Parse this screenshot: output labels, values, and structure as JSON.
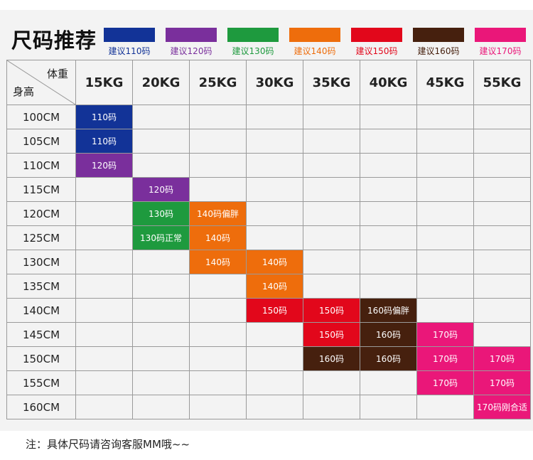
{
  "title": "尺码推荐",
  "legend": [
    {
      "label": "建议110码",
      "color": "#123397"
    },
    {
      "label": "建议120码",
      "color": "#7a2f9c"
    },
    {
      "label": "建议130码",
      "color": "#1e9a3e"
    },
    {
      "label": "建议140码",
      "color": "#ee6d0c"
    },
    {
      "label": "建议150码",
      "color": "#e2071b"
    },
    {
      "label": "建议160码",
      "color": "#46200e"
    },
    {
      "label": "建议170码",
      "color": "#ea1779"
    }
  ],
  "corner": {
    "weight": "体重",
    "height": "身高"
  },
  "weights": [
    "15KG",
    "20KG",
    "25KG",
    "30KG",
    "35KG",
    "40KG",
    "45KG",
    "55KG"
  ],
  "rows": [
    {
      "height": "100CM",
      "cells": [
        {
          "t": "110码",
          "c": 0
        },
        null,
        null,
        null,
        null,
        null,
        null,
        null
      ]
    },
    {
      "height": "105CM",
      "cells": [
        {
          "t": "110码",
          "c": 0
        },
        null,
        null,
        null,
        null,
        null,
        null,
        null
      ]
    },
    {
      "height": "110CM",
      "cells": [
        {
          "t": "120码",
          "c": 1
        },
        null,
        null,
        null,
        null,
        null,
        null,
        null
      ]
    },
    {
      "height": "115CM",
      "cells": [
        null,
        {
          "t": "120码",
          "c": 1
        },
        null,
        null,
        null,
        null,
        null,
        null
      ]
    },
    {
      "height": "120CM",
      "cells": [
        null,
        {
          "t": "130码",
          "c": 2
        },
        {
          "t": "140码偏胖",
          "c": 3
        },
        null,
        null,
        null,
        null,
        null
      ]
    },
    {
      "height": "125CM",
      "cells": [
        null,
        {
          "t": "130码正常",
          "c": 2
        },
        {
          "t": "140码",
          "c": 3
        },
        null,
        null,
        null,
        null,
        null
      ]
    },
    {
      "height": "130CM",
      "cells": [
        null,
        null,
        {
          "t": "140码",
          "c": 3
        },
        {
          "t": "140码",
          "c": 3
        },
        null,
        null,
        null,
        null
      ]
    },
    {
      "height": "135CM",
      "cells": [
        null,
        null,
        null,
        {
          "t": "140码",
          "c": 3
        },
        null,
        null,
        null,
        null
      ]
    },
    {
      "height": "140CM",
      "cells": [
        null,
        null,
        null,
        {
          "t": "150码",
          "c": 4
        },
        {
          "t": "150码",
          "c": 4
        },
        {
          "t": "160码偏胖",
          "c": 5
        },
        null,
        null
      ]
    },
    {
      "height": "145CM",
      "cells": [
        null,
        null,
        null,
        null,
        {
          "t": "150码",
          "c": 4
        },
        {
          "t": "160码",
          "c": 5
        },
        {
          "t": "170码",
          "c": 6
        },
        null
      ]
    },
    {
      "height": "150CM",
      "cells": [
        null,
        null,
        null,
        null,
        {
          "t": "160码",
          "c": 5
        },
        {
          "t": "160码",
          "c": 5
        },
        {
          "t": "170码",
          "c": 6
        },
        {
          "t": "170码",
          "c": 6
        }
      ]
    },
    {
      "height": "155CM",
      "cells": [
        null,
        null,
        null,
        null,
        null,
        null,
        {
          "t": "170码",
          "c": 6
        },
        {
          "t": "170码",
          "c": 6
        }
      ]
    },
    {
      "height": "160CM",
      "cells": [
        null,
        null,
        null,
        null,
        null,
        null,
        null,
        {
          "t": "170码刚合适",
          "c": 6
        }
      ]
    }
  ],
  "note": "注：具体尺码请咨询客服MM哦~~"
}
